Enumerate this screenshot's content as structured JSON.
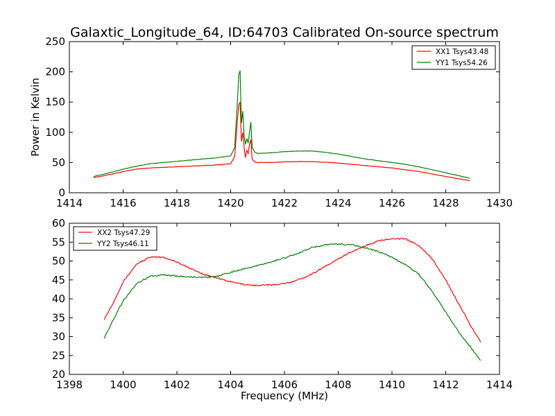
{
  "title": "Galaxtic_Longitude_64, ID:64703 Calibrated On-source spectrum",
  "colors": {
    "red": "#ff0000",
    "green": "#007f00"
  },
  "chart_data": [
    {
      "type": "line",
      "xlim": [
        1414,
        1430
      ],
      "ylim": [
        0,
        250
      ],
      "xticks": [
        "1414",
        "1416",
        "1418",
        "1420",
        "1422",
        "1424",
        "1426",
        "1428",
        "1430"
      ],
      "yticks": [
        "0",
        "50",
        "100",
        "150",
        "200",
        "250"
      ],
      "xlabel": "",
      "ylabel": "Power in Kelvin",
      "grid": false,
      "legend": "top-right",
      "series": [
        {
          "name": "XX1 Tsys43.48",
          "color": "#ff0000",
          "x": [
            1414.9,
            1415.5,
            1416.0,
            1416.5,
            1417.0,
            1417.5,
            1418.0,
            1418.5,
            1419.0,
            1419.5,
            1420.0,
            1420.15,
            1420.25,
            1420.3,
            1420.35,
            1420.4,
            1420.45,
            1420.5,
            1420.55,
            1420.6,
            1420.65,
            1420.7,
            1420.75,
            1420.8,
            1420.9,
            1421.0,
            1421.5,
            1422.0,
            1422.5,
            1423.0,
            1423.5,
            1424.0,
            1424.5,
            1425.0,
            1425.5,
            1426.0,
            1426.5,
            1427.0,
            1427.5,
            1428.0,
            1428.5,
            1428.9
          ],
          "values": [
            25,
            30,
            35,
            39,
            41,
            42,
            43,
            44,
            45,
            46,
            48,
            60,
            120,
            145,
            150,
            85,
            100,
            75,
            58,
            70,
            65,
            80,
            88,
            55,
            51,
            50,
            50,
            51,
            51.5,
            51.5,
            50.5,
            49,
            47,
            45,
            43,
            41,
            38,
            35,
            31,
            27,
            23,
            20
          ]
        },
        {
          "name": "YY1 Tsys54.26",
          "color": "#007f00",
          "x": [
            1414.9,
            1415.5,
            1416.0,
            1416.5,
            1417.0,
            1417.5,
            1418.0,
            1418.5,
            1419.0,
            1419.5,
            1420.0,
            1420.15,
            1420.25,
            1420.3,
            1420.35,
            1420.4,
            1420.45,
            1420.5,
            1420.55,
            1420.6,
            1420.65,
            1420.7,
            1420.75,
            1420.8,
            1420.9,
            1421.0,
            1421.5,
            1422.0,
            1422.5,
            1423.0,
            1423.5,
            1424.0,
            1424.5,
            1425.0,
            1425.5,
            1426.0,
            1426.5,
            1427.0,
            1427.5,
            1428.0,
            1428.5,
            1428.9
          ],
          "values": [
            27,
            33,
            39,
            44,
            48,
            50,
            52,
            54,
            56,
            58,
            61,
            75,
            150,
            195,
            202,
            115,
            135,
            95,
            80,
            90,
            82,
            100,
            117,
            75,
            67,
            65,
            66,
            68,
            69,
            69,
            67,
            64,
            60,
            56,
            53,
            50,
            47,
            43,
            38,
            33,
            28,
            24
          ]
        }
      ]
    },
    {
      "type": "line",
      "xlim": [
        1398,
        1414
      ],
      "ylim": [
        20,
        60
      ],
      "xticks": [
        "1398",
        "1400",
        "1402",
        "1404",
        "1406",
        "1408",
        "1410",
        "1412",
        "1414"
      ],
      "yticks": [
        "20",
        "25",
        "30",
        "35",
        "40",
        "45",
        "50",
        "55",
        "60"
      ],
      "xlabel": "Frequency (MHz)",
      "ylabel": "",
      "grid": false,
      "legend": "top-left",
      "series": [
        {
          "name": "XX2 Tsys47.29",
          "color": "#ff0000",
          "x": [
            1399.3,
            1399.6,
            1400.0,
            1400.5,
            1401.0,
            1401.5,
            1402.0,
            1402.5,
            1403.0,
            1403.5,
            1404.0,
            1404.5,
            1405.0,
            1405.5,
            1406.0,
            1406.5,
            1407.0,
            1407.5,
            1408.0,
            1408.5,
            1409.0,
            1409.5,
            1410.0,
            1410.5,
            1411.0,
            1411.5,
            1412.0,
            1412.5,
            1413.0,
            1413.3
          ],
          "values": [
            34.7,
            38.5,
            44.5,
            49.2,
            51.0,
            51.0,
            49.8,
            48.0,
            46.5,
            45.5,
            44.5,
            43.8,
            43.5,
            43.7,
            44.0,
            45.0,
            46.5,
            48.5,
            50.5,
            52.5,
            54.0,
            55.3,
            56.0,
            55.8,
            54.2,
            50.5,
            45.0,
            38.5,
            32.0,
            28.5
          ]
        },
        {
          "name": "YY2 Tsys46.11",
          "color": "#007f00",
          "x": [
            1399.3,
            1399.6,
            1400.0,
            1400.5,
            1401.0,
            1401.5,
            1402.0,
            1402.5,
            1403.0,
            1403.5,
            1404.0,
            1404.5,
            1405.0,
            1405.5,
            1406.0,
            1406.5,
            1407.0,
            1407.5,
            1408.0,
            1408.5,
            1409.0,
            1409.5,
            1410.0,
            1410.5,
            1411.0,
            1411.5,
            1412.0,
            1412.5,
            1413.0,
            1413.3
          ],
          "values": [
            29.7,
            34.0,
            39.5,
            44.0,
            46.0,
            46.3,
            46.0,
            45.8,
            45.6,
            46.0,
            47.0,
            48.0,
            48.8,
            49.8,
            50.8,
            52.0,
            53.5,
            54.3,
            54.5,
            54.3,
            53.5,
            52.5,
            51.0,
            49.0,
            46.5,
            42.0,
            36.5,
            31.0,
            26.5,
            23.7
          ]
        }
      ]
    }
  ]
}
